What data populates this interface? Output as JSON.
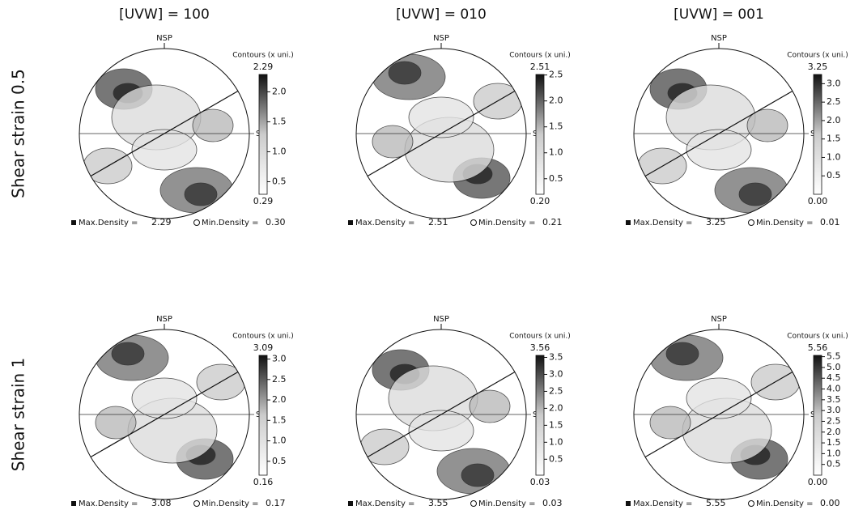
{
  "columns": [
    "[UVW] = 100",
    "[UVW] = 010",
    "[UVW] = 001"
  ],
  "rows": [
    "Shear strain 0.5",
    "Shear strain 1"
  ],
  "labels": {
    "nsp": "NSP",
    "sd": "SD",
    "contours": "Contours (x uni.)",
    "max_density": "Max.Density =",
    "min_density": "Min.Density ="
  },
  "panels": [
    {
      "cbar_max": {
        "value": 2.29,
        "label": "2.29"
      },
      "cbar_min": {
        "value": 0.29,
        "label": "0.29"
      },
      "ticks": [
        0.5,
        {
          "value": 1,
          "label": "1.0"
        },
        1.5,
        {
          "value": 2,
          "label": "2.0"
        }
      ],
      "max_density": "2.29",
      "min_density": "0.30"
    },
    {
      "cbar_max": {
        "value": 2.51,
        "label": "2.51"
      },
      "cbar_min": {
        "value": 0.2,
        "label": "0.20"
      },
      "ticks": [
        0.5,
        {
          "value": 1,
          "label": "1.0"
        },
        1.5,
        {
          "value": 2,
          "label": "2.0"
        },
        2.5
      ],
      "max_density": "2.51",
      "min_density": "0.21"
    },
    {
      "cbar_max": {
        "value": 3.25,
        "label": "3.25"
      },
      "cbar_min": {
        "value": 0,
        "label": "0.00"
      },
      "ticks": [
        0.5,
        {
          "value": 1,
          "label": "1.0"
        },
        1.5,
        {
          "value": 2,
          "label": "2.0"
        },
        2.5,
        {
          "value": 3,
          "label": "3.0"
        }
      ],
      "max_density": "3.25",
      "min_density": "0.01"
    },
    {
      "cbar_max": {
        "value": 3.09,
        "label": "3.09"
      },
      "cbar_min": {
        "value": 0.16,
        "label": "0.16"
      },
      "ticks": [
        0.5,
        {
          "value": 1,
          "label": "1.0"
        },
        1.5,
        {
          "value": 2,
          "label": "2.0"
        },
        2.5,
        {
          "value": 3,
          "label": "3.0"
        }
      ],
      "max_density": "3.08",
      "min_density": "0.17"
    },
    {
      "cbar_max": {
        "value": 3.56,
        "label": "3.56"
      },
      "cbar_min": {
        "value": 0.03,
        "label": "0.03"
      },
      "ticks": [
        0.5,
        {
          "value": 1,
          "label": "1.0"
        },
        1.5,
        {
          "value": 2,
          "label": "2.0"
        },
        2.5,
        {
          "value": 3,
          "label": "3.0"
        },
        3.5
      ],
      "max_density": "3.55",
      "min_density": "0.03"
    },
    {
      "cbar_max": {
        "value": 5.56,
        "label": "5.56"
      },
      "cbar_min": {
        "value": 0,
        "label": "0.00"
      },
      "ticks": [
        0.5,
        {
          "value": 1,
          "label": "1.0"
        },
        1.5,
        {
          "value": 2,
          "label": "2.0"
        },
        2.5,
        {
          "value": 3,
          "label": "3.0"
        },
        3.5,
        {
          "value": 4,
          "label": "4.0"
        },
        4.5,
        {
          "value": 5,
          "label": "5.0"
        },
        5.5
      ],
      "max_density": "5.55",
      "min_density": "0.00"
    }
  ]
}
